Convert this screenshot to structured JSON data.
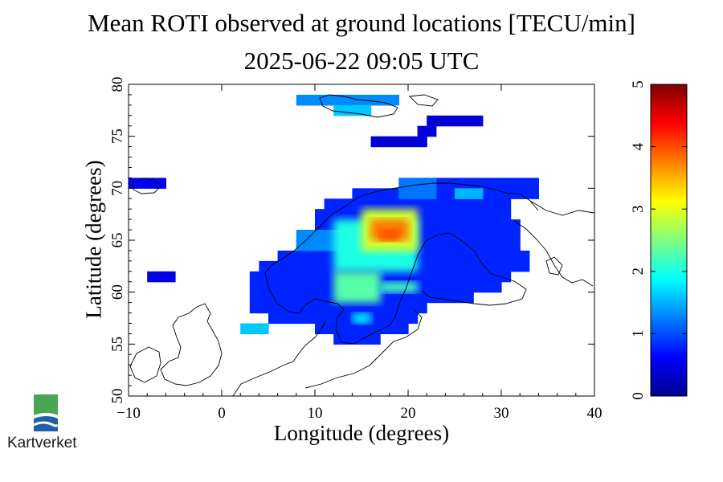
{
  "title": "Mean ROTI observed at ground locations [TECU/min]",
  "subtitle": "2025-06-22 09:05 UTC",
  "xlabel": "Longitude (degrees)",
  "ylabel": "Latitude (degrees)",
  "logo_text": "Kartverket",
  "chart_data": {
    "type": "heatmap",
    "title": "Mean ROTI observed at ground locations [TECU/min]",
    "subtitle": "2025-06-22 09:05 UTC",
    "xlabel": "Longitude (degrees)",
    "ylabel": "Latitude (degrees)",
    "xlim": [
      -10,
      40
    ],
    "ylim": [
      50,
      80
    ],
    "xticks": [
      -10,
      0,
      10,
      20,
      30,
      40
    ],
    "yticks": [
      50,
      55,
      60,
      65,
      70,
      75,
      80
    ],
    "xtick_labels": [
      "−10",
      "0",
      "10",
      "20",
      "30",
      "40"
    ],
    "ytick_labels": [
      "50",
      "55",
      "60",
      "65",
      "70",
      "75",
      "80"
    ],
    "colorbar": {
      "min": 0,
      "max": 5,
      "ticks": [
        0,
        1,
        2,
        3,
        4,
        5
      ],
      "tick_labels": [
        "0",
        "1",
        "2",
        "3",
        "4",
        "5"
      ],
      "colormap": "jet"
    },
    "cells": [
      {
        "lon": [
          8,
          19
        ],
        "lat": [
          78,
          79
        ],
        "value": 1.3
      },
      {
        "lon": [
          12,
          16
        ],
        "lat": [
          77,
          78
        ],
        "value": 1.6
      },
      {
        "lon": [
          22,
          28
        ],
        "lat": [
          76,
          77
        ],
        "value": 0.4
      },
      {
        "lon": [
          21,
          23
        ],
        "lat": [
          75,
          76
        ],
        "value": 0.4
      },
      {
        "lon": [
          16,
          22
        ],
        "lat": [
          74,
          75
        ],
        "value": 0.4
      },
      {
        "lon": [
          -10,
          -6
        ],
        "lat": [
          70,
          71
        ],
        "value": 0.6
      },
      {
        "lon": [
          -8,
          -5
        ],
        "lat": [
          61,
          62
        ],
        "value": 0.5
      },
      {
        "lon": [
          2,
          5
        ],
        "lat": [
          56,
          57
        ],
        "value": 1.6
      },
      {
        "lon": [
          19,
          34
        ],
        "lat": [
          70,
          71
        ],
        "value": 0.8
      },
      {
        "lon": [
          14,
          34
        ],
        "lat": [
          69,
          70
        ],
        "value": 0.8
      },
      {
        "lon": [
          11,
          31
        ],
        "lat": [
          68,
          69
        ],
        "value": 0.8
      },
      {
        "lon": [
          10,
          31
        ],
        "lat": [
          67,
          68
        ],
        "value": 0.8
      },
      {
        "lon": [
          10,
          32
        ],
        "lat": [
          66,
          67
        ],
        "value": 0.8
      },
      {
        "lon": [
          9,
          32
        ],
        "lat": [
          65,
          66
        ],
        "value": 0.8
      },
      {
        "lon": [
          8,
          32
        ],
        "lat": [
          64,
          65
        ],
        "value": 0.8
      },
      {
        "lon": [
          6,
          33
        ],
        "lat": [
          63,
          64
        ],
        "value": 0.8
      },
      {
        "lon": [
          4,
          33
        ],
        "lat": [
          62,
          63
        ],
        "value": 0.8
      },
      {
        "lon": [
          3,
          31
        ],
        "lat": [
          61,
          62
        ],
        "value": 0.8
      },
      {
        "lon": [
          3,
          30
        ],
        "lat": [
          60,
          61
        ],
        "value": 0.8
      },
      {
        "lon": [
          3,
          27
        ],
        "lat": [
          59,
          60
        ],
        "value": 0.8
      },
      {
        "lon": [
          3,
          22
        ],
        "lat": [
          58,
          59
        ],
        "value": 0.8
      },
      {
        "lon": [
          5,
          21
        ],
        "lat": [
          57,
          58
        ],
        "value": 0.8
      },
      {
        "lon": [
          10,
          20
        ],
        "lat": [
          56,
          57
        ],
        "value": 0.8
      },
      {
        "lon": [
          12,
          17
        ],
        "lat": [
          55,
          56
        ],
        "value": 0.8
      },
      {
        "lon": [
          8,
          13
        ],
        "lat": [
          64,
          66
        ],
        "value": 1.3
      },
      {
        "lon": [
          12,
          21
        ],
        "lat": [
          62,
          67
        ],
        "value": 2.0
      },
      {
        "lon": [
          15,
          21
        ],
        "lat": [
          64,
          68
        ],
        "value": 2.9
      },
      {
        "lon": [
          16,
          20
        ],
        "lat": [
          65,
          67
        ],
        "value": 3.8
      },
      {
        "lon": [
          17,
          19
        ],
        "lat": [
          65,
          66
        ],
        "value": 4.0
      },
      {
        "lon": [
          12,
          17
        ],
        "lat": [
          59,
          62
        ],
        "value": 2.3
      },
      {
        "lon": [
          17,
          21
        ],
        "lat": [
          60,
          61
        ],
        "value": 2.2
      },
      {
        "lon": [
          14,
          16
        ],
        "lat": [
          57,
          58
        ],
        "value": 1.8
      },
      {
        "lon": [
          19,
          23
        ],
        "lat": [
          69,
          71
        ],
        "value": 1.2
      },
      {
        "lon": [
          25,
          28
        ],
        "lat": [
          69,
          70
        ],
        "value": 1.5
      }
    ]
  }
}
